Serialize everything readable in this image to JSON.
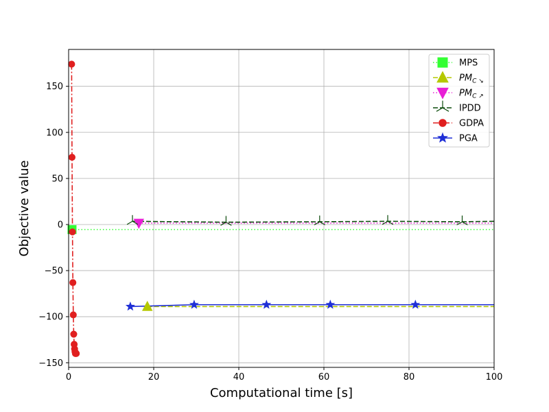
{
  "chart_data": {
    "type": "line",
    "title": "",
    "xlabel": "Computational time [s]",
    "ylabel": "Objective value",
    "xlim": [
      0,
      100
    ],
    "ylim": [
      -155,
      190
    ],
    "xticks": [
      0,
      20,
      40,
      60,
      80,
      100
    ],
    "yticks": [
      -150,
      -100,
      -50,
      0,
      50,
      100,
      150
    ],
    "xtick_labels": [
      "0",
      "20",
      "40",
      "60",
      "80",
      "100"
    ],
    "ytick_labels": [
      "−150",
      "−100",
      "−50",
      "0",
      "50",
      "100",
      "150"
    ],
    "grid": true,
    "legend_position": "top-right",
    "series": [
      {
        "name": "MPS",
        "label_main": "MPS",
        "label_sub": "",
        "color": "#33ff33",
        "linestyle": "dotted",
        "marker": "square",
        "x": [
          0.8,
          100
        ],
        "y": [
          -5.5,
          -5.5
        ],
        "marker_x": [
          0.8
        ],
        "marker_y": [
          -5.5
        ]
      },
      {
        "name": "PM_C↘",
        "label_main": "PM",
        "label_sub": "C ↘",
        "color": "#b5c800",
        "linestyle": "dashed",
        "marker": "triangle-up",
        "x": [
          18.5,
          100
        ],
        "y": [
          -89,
          -89
        ],
        "marker_x": [
          18.5
        ],
        "marker_y": [
          -89
        ]
      },
      {
        "name": "PM_C↗",
        "label_main": "PM",
        "label_sub": "C ↗",
        "color": "#e81ed6",
        "linestyle": "dotted",
        "marker": "triangle-down",
        "x": [
          16.5,
          100
        ],
        "y": [
          1.5,
          1.5
        ],
        "marker_x": [
          16.5
        ],
        "marker_y": [
          1.5
        ]
      },
      {
        "name": "IPDD",
        "label_main": "IPDD",
        "label_sub": "",
        "color": "#0a4a0a",
        "linestyle": "dashed",
        "marker": "tri",
        "x": [
          15,
          37,
          59,
          75,
          92.5,
          100
        ],
        "y": [
          3.5,
          2.5,
          3,
          3.5,
          3,
          3.5
        ],
        "marker_x": [
          15,
          37,
          59,
          75,
          92.5
        ],
        "marker_y": [
          3.5,
          2.5,
          3,
          3.5,
          3
        ]
      },
      {
        "name": "GDPA",
        "label_main": "GDPA",
        "label_sub": "",
        "color": "#e01f1f",
        "linestyle": "dashdot",
        "marker": "circle",
        "x": [
          0.7,
          0.8,
          0.9,
          1.0,
          1.1,
          1.2,
          1.3,
          1.4,
          1.5,
          1.6,
          1.8
        ],
        "y": [
          174,
          73,
          -8,
          -63,
          -98,
          -119,
          -130,
          -135,
          -138,
          -140,
          -140
        ],
        "marker_x": [
          0.7,
          0.8,
          0.9,
          1.0,
          1.1,
          1.2,
          1.3,
          1.4,
          1.5,
          1.6,
          1.8
        ],
        "marker_y": [
          174,
          73,
          -8,
          -63,
          -98,
          -119,
          -130,
          -135,
          -138,
          -140,
          -140
        ]
      },
      {
        "name": "PGA",
        "label_main": "PGA",
        "label_sub": "",
        "color": "#1f2fd6",
        "linestyle": "solid",
        "marker": "star",
        "x": [
          14.5,
          29.5,
          46.5,
          61.5,
          81.5,
          100
        ],
        "y": [
          -89,
          -87,
          -87,
          -87,
          -87,
          -87
        ],
        "marker_x": [
          14.5,
          29.5,
          46.5,
          61.5,
          81.5
        ],
        "marker_y": [
          -89,
          -87,
          -87,
          -87,
          -87
        ]
      }
    ]
  }
}
